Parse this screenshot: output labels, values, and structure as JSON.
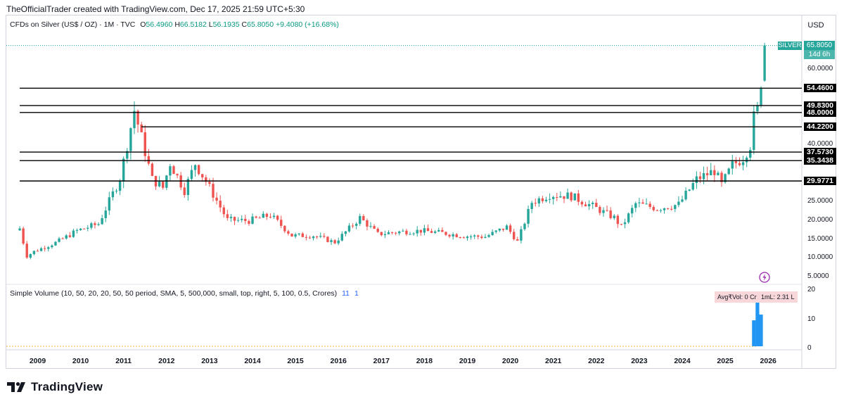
{
  "header": {
    "attribution": "TheOfficialTrader created with TradingView.com, Dec 17, 2025 21:59 UTC+5:30"
  },
  "symbol": {
    "description": "CFDs on Silver (US$ / OZ) · 1M · TVC",
    "open_label": "O",
    "open": "56.4960",
    "high_label": "H",
    "high": "66.5182",
    "low_label": "L",
    "low": "56.1935",
    "close_label": "C",
    "close": "65.8050",
    "change": "+9.4080 (+16.68%)"
  },
  "currency": "USD",
  "price_tag": {
    "ticker": "SILVER",
    "price": "65.8050",
    "countdown": "14d 6h"
  },
  "volume": {
    "legend": "Simple Volume (10, 50, 20, 20, 50, 50 period, SMA, 5, 500,000, small, top, right, 5, 100, 0.5, Crores)",
    "value_a": "11",
    "value_b": "1",
    "badge_avg": "Avg₹Vol: 0 Cr",
    "badge_1ml": "1mL: 2.31 L",
    "axis_ticks": [
      "20",
      "10",
      "0"
    ]
  },
  "brand": {
    "name": "TradingView"
  },
  "colors": {
    "up": "#26a69a",
    "down": "#ef5350",
    "volume": "#2196f3",
    "level": "#000000",
    "avg_line": "#f5b041"
  },
  "chart_data": {
    "type": "candlestick",
    "interval": "1M",
    "x_ticks": [
      "2009",
      "2010",
      "2011",
      "2012",
      "2013",
      "2014",
      "2015",
      "2016",
      "2017",
      "2018",
      "2019",
      "2020",
      "2021",
      "2022",
      "2023",
      "2024",
      "2025",
      "2026"
    ],
    "y_ticks": [
      "5.0000",
      "10.0000",
      "15.0000",
      "20.0000",
      "25.0000",
      "40.0000",
      "60.0000"
    ],
    "ylim": [
      3,
      71
    ],
    "horizontal_levels": [
      {
        "label": "54.4600",
        "value": 54.46,
        "start": "2008-08"
      },
      {
        "label": "49.8300",
        "value": 49.83,
        "start": "2008-08"
      },
      {
        "label": "48.0000",
        "value": 48.0,
        "start": "2008-08"
      },
      {
        "label": "44.2200",
        "value": 44.22,
        "start": "2011-06"
      },
      {
        "label": "37.5730",
        "value": 37.573,
        "start": "2008-08"
      },
      {
        "label": "35.3438",
        "value": 35.3438,
        "start": "2008-08"
      },
      {
        "label": "29.9771",
        "value": 29.9771,
        "start": "2008-08"
      }
    ],
    "closes_approx": [
      [
        "2008-08",
        17.5
      ],
      [
        "2008-10",
        10.0
      ],
      [
        "2008-12",
        11.3
      ],
      [
        "2009-06",
        13.7
      ],
      [
        "2009-12",
        16.9
      ],
      [
        "2010-06",
        18.7
      ],
      [
        "2010-12",
        30.6
      ],
      [
        "2011-04",
        48.6
      ],
      [
        "2011-09",
        30.4
      ],
      [
        "2011-12",
        28.2
      ],
      [
        "2012-02",
        34.7
      ],
      [
        "2012-06",
        27.5
      ],
      [
        "2012-09",
        34.6
      ],
      [
        "2012-12",
        29.9
      ],
      [
        "2013-06",
        19.7
      ],
      [
        "2013-12",
        19.5
      ],
      [
        "2014-06",
        21.0
      ],
      [
        "2014-12",
        15.6
      ],
      [
        "2015-06",
        15.6
      ],
      [
        "2015-12",
        13.8
      ],
      [
        "2016-07",
        20.3
      ],
      [
        "2016-12",
        16.0
      ],
      [
        "2017-06",
        16.6
      ],
      [
        "2017-12",
        16.9
      ],
      [
        "2018-06",
        16.3
      ],
      [
        "2018-12",
        15.5
      ],
      [
        "2019-06",
        15.3
      ],
      [
        "2019-12",
        17.9
      ],
      [
        "2020-03",
        14.0
      ],
      [
        "2020-07",
        24.4
      ],
      [
        "2020-12",
        26.4
      ],
      [
        "2021-06",
        26.0
      ],
      [
        "2021-12",
        23.3
      ],
      [
        "2022-06",
        20.3
      ],
      [
        "2022-08",
        17.9
      ],
      [
        "2022-12",
        24.0
      ],
      [
        "2023-06",
        22.8
      ],
      [
        "2023-12",
        23.8
      ],
      [
        "2024-05",
        30.4
      ],
      [
        "2024-10",
        32.7
      ],
      [
        "2024-12",
        28.9
      ],
      [
        "2025-03",
        34.1
      ],
      [
        "2025-06",
        36.1
      ],
      [
        "2025-08",
        39.5
      ],
      [
        "2025-09",
        46.6
      ],
      [
        "2025-10",
        48.6
      ],
      [
        "2025-11",
        56.5
      ],
      [
        "2025-12",
        65.805
      ]
    ],
    "volume_bars": [
      [
        "2025-09",
        9
      ],
      [
        "2025-10",
        19
      ],
      [
        "2025-11",
        11
      ]
    ]
  }
}
